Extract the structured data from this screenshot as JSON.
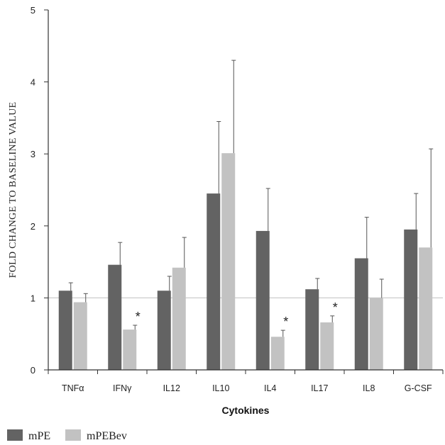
{
  "chart_data": {
    "type": "bar",
    "xlabel": "Cytokines",
    "ylabel": "FOLD CHANGE TO BASELINE VALUE",
    "ylim": [
      0,
      5
    ],
    "yticks": [
      "0",
      "1",
      "2",
      "3",
      "4",
      "5"
    ],
    "categories": [
      "TNFα",
      "IFNγ",
      "IL12",
      "IL10",
      "IL4",
      "IL17",
      "IL8",
      "G-CSF"
    ],
    "series": [
      {
        "name": "mPE",
        "color": "#636363",
        "values": [
          1.1,
          1.46,
          1.1,
          2.45,
          1.93,
          1.12,
          1.55,
          1.95
        ],
        "errors": [
          0.11,
          0.31,
          0.2,
          1.0,
          0.59,
          0.15,
          0.57,
          0.5
        ]
      },
      {
        "name": "mPEBev",
        "color": "#c2c2c2",
        "values": [
          0.94,
          0.56,
          1.42,
          3.01,
          0.46,
          0.66,
          1.0,
          1.7
        ],
        "errors": [
          0.12,
          0.06,
          0.42,
          1.29,
          0.09,
          0.09,
          0.26,
          1.37
        ]
      }
    ],
    "reference_line": 1,
    "reference_line_color": "#cccccc",
    "significance_marks": [
      {
        "category": "IFNγ",
        "series": "mPEBev",
        "text": "*"
      },
      {
        "category": "IL4",
        "series": "mPEBev",
        "text": "*"
      },
      {
        "category": "IL17",
        "series": "mPEBev",
        "text": "*"
      }
    ],
    "grid": false,
    "legend_position": "bottom-left"
  }
}
